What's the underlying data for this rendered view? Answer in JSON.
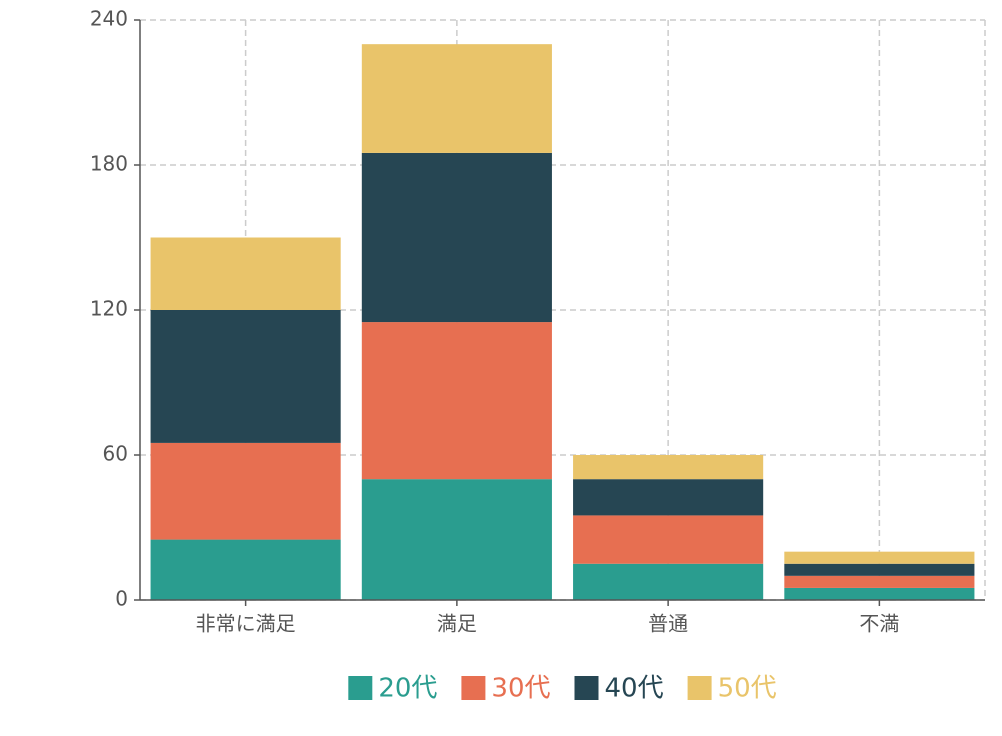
{
  "chart_data": {
    "type": "stacked-bar",
    "categories": [
      "非常に満足",
      "満足",
      "普通",
      "不満"
    ],
    "series": [
      {
        "name": "20代",
        "color": "#2a9d8f",
        "values": [
          25,
          50,
          15,
          5
        ]
      },
      {
        "name": "30代",
        "color": "#e76f51",
        "values": [
          40,
          65,
          20,
          5
        ]
      },
      {
        "name": "40代",
        "color": "#264653",
        "values": [
          55,
          70,
          15,
          5
        ]
      },
      {
        "name": "50代",
        "color": "#e9c46a",
        "values": [
          30,
          45,
          10,
          5
        ]
      }
    ],
    "ylim": [
      0,
      240
    ],
    "yticks": [
      0,
      60,
      120,
      180,
      240
    ],
    "grid": true,
    "legend": "bottom"
  }
}
